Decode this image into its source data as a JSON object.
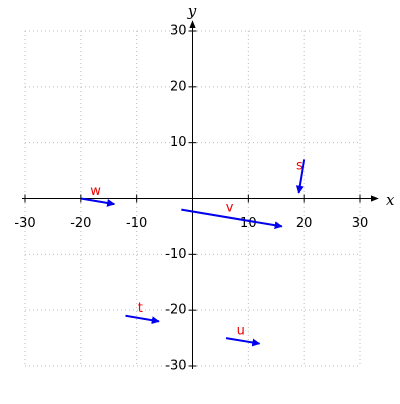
{
  "chart_data": {
    "type": "vector",
    "x_label": "x",
    "y_label": "y",
    "xlim": [
      -30,
      30
    ],
    "ylim": [
      -30,
      30
    ],
    "xticks": [
      -30,
      -20,
      -10,
      10,
      20,
      30
    ],
    "yticks": [
      -30,
      -20,
      -10,
      10,
      20,
      30
    ],
    "grid": true,
    "color": "#0000ee",
    "label_color": "#ee0000",
    "vectors": [
      {
        "name": "w",
        "x": -20,
        "y": 0,
        "dx": 6,
        "dy": -1
      },
      {
        "name": "v",
        "x": -2,
        "y": -2,
        "dx": 18,
        "dy": -3
      },
      {
        "name": "s",
        "x": 20,
        "y": 7,
        "dx": -1,
        "dy": -6
      },
      {
        "name": "t",
        "x": -12,
        "y": -21,
        "dx": 6,
        "dy": -1
      },
      {
        "name": "u",
        "x": 6,
        "y": -25,
        "dx": 6,
        "dy": -1
      }
    ]
  }
}
